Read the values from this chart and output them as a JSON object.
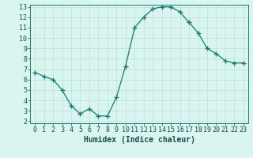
{
  "x": [
    0,
    1,
    2,
    3,
    4,
    5,
    6,
    7,
    8,
    9,
    10,
    11,
    12,
    13,
    14,
    15,
    16,
    17,
    18,
    19,
    20,
    21,
    22,
    23
  ],
  "y": [
    6.7,
    6.3,
    6.0,
    5.0,
    3.5,
    2.7,
    3.2,
    2.5,
    2.5,
    4.3,
    7.3,
    11.0,
    12.0,
    12.8,
    13.0,
    13.0,
    12.5,
    11.5,
    10.5,
    9.0,
    8.5,
    7.8,
    7.6,
    7.6
  ],
  "line_color": "#1a7a6e",
  "marker": "+",
  "marker_size": 4,
  "marker_lw": 1.0,
  "bg_color": "#d8f5f0",
  "grid_color": "#c0ddd8",
  "xlabel": "Humidex (Indice chaleur)",
  "xlabel_fontsize": 7,
  "tick_fontsize": 6,
  "ylim": [
    2,
    13
  ],
  "xlim": [
    -0.5,
    23.5
  ],
  "yticks": [
    2,
    3,
    4,
    5,
    6,
    7,
    8,
    9,
    10,
    11,
    12,
    13
  ],
  "xticks": [
    0,
    1,
    2,
    3,
    4,
    5,
    6,
    7,
    8,
    9,
    10,
    11,
    12,
    13,
    14,
    15,
    16,
    17,
    18,
    19,
    20,
    21,
    22,
    23
  ],
  "spine_color": "#1a7a6e",
  "text_color": "#1a4a44"
}
